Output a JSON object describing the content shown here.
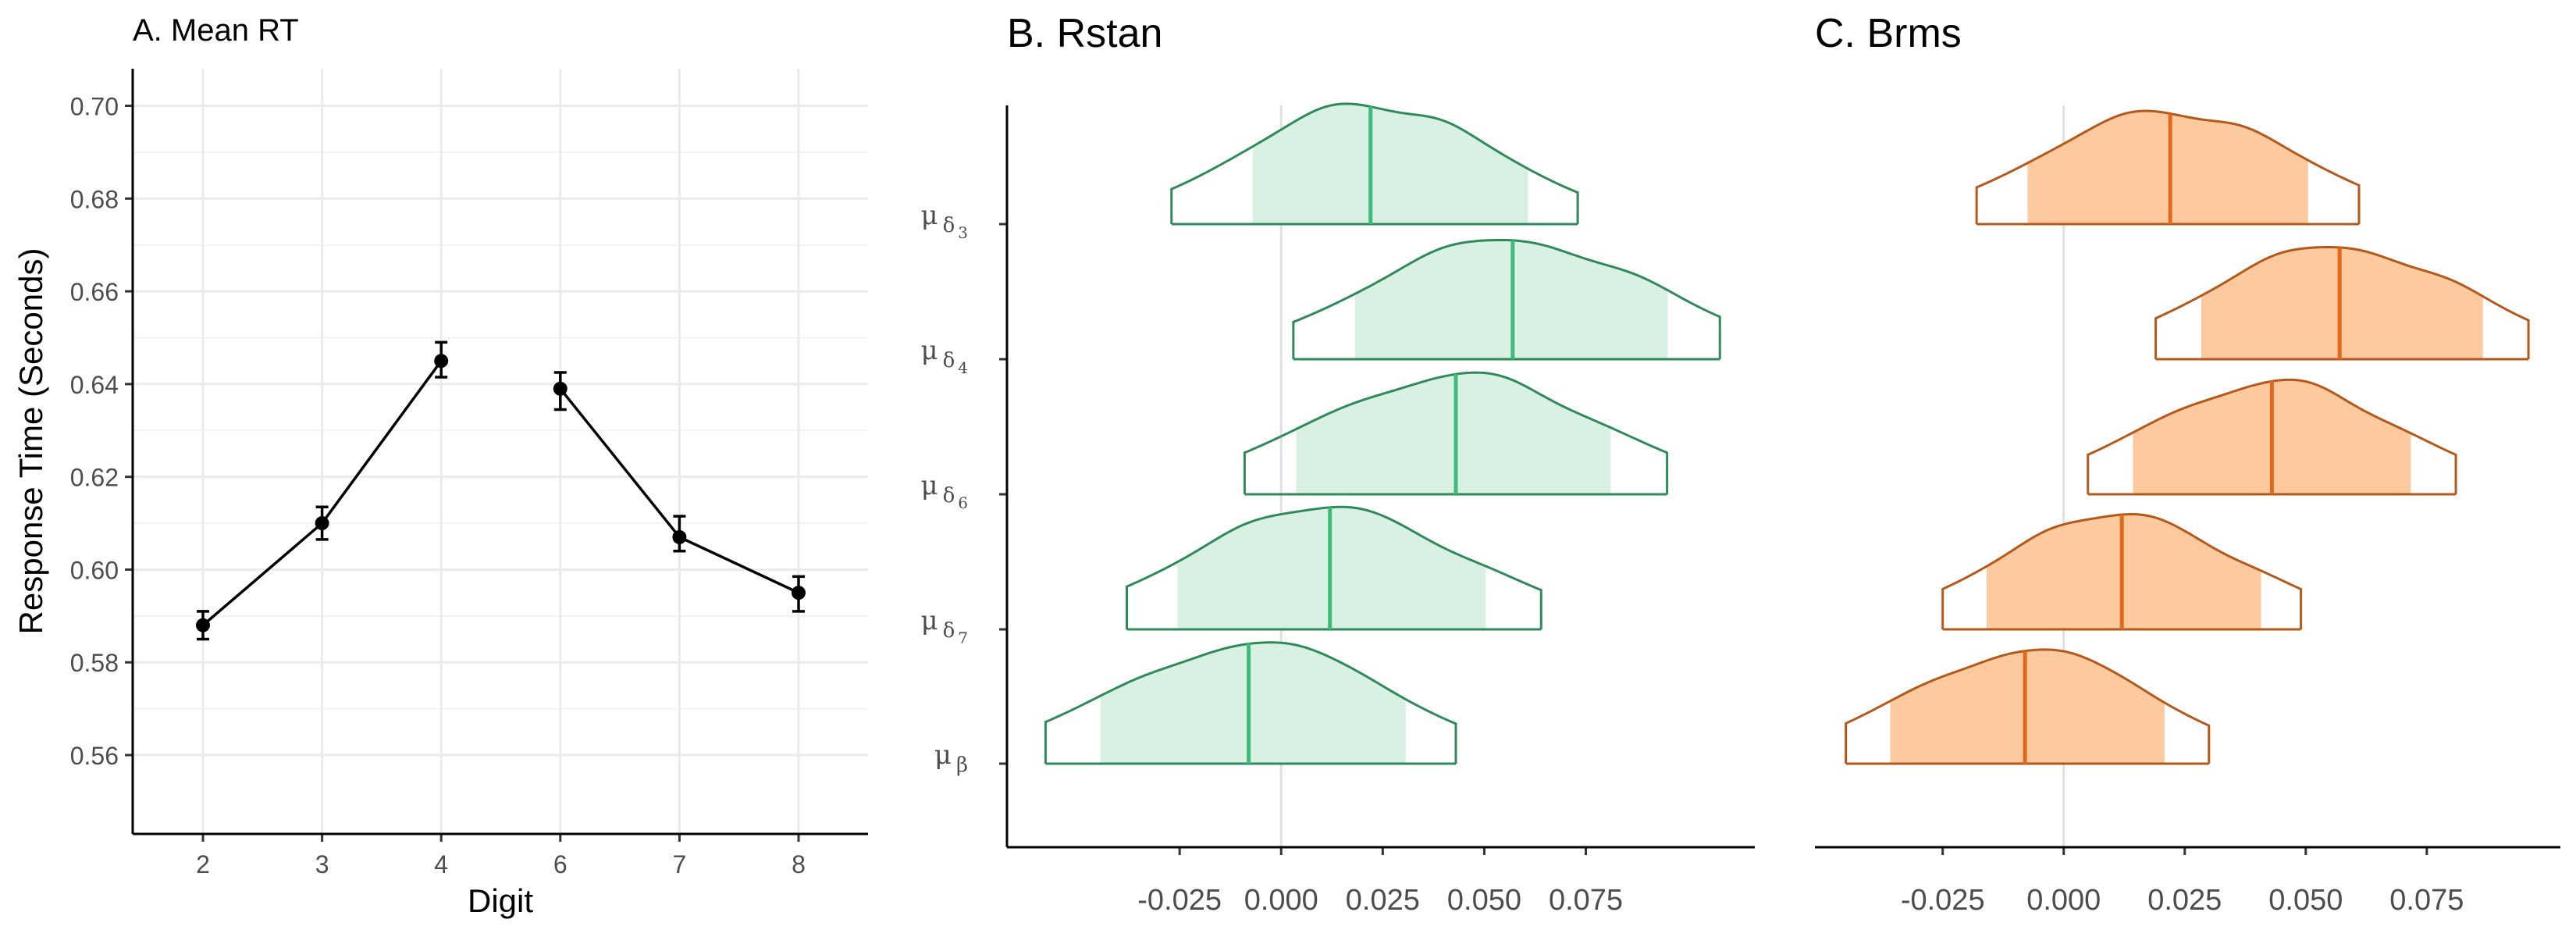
{
  "chart_data": [
    {
      "type": "line",
      "title": "A. Mean RT",
      "xlabel": "Digit",
      "ylabel": "Response Time (Seconds)",
      "categories": [
        "2",
        "3",
        "4",
        "6",
        "7",
        "8"
      ],
      "segments": [
        [
          "2",
          "3",
          "4"
        ],
        [
          "6",
          "7",
          "8"
        ]
      ],
      "values": [
        0.588,
        0.61,
        0.645,
        0.639,
        0.607,
        0.595
      ],
      "error_low": [
        0.585,
        0.6065,
        0.6415,
        0.6345,
        0.604,
        0.591
      ],
      "error_high": [
        0.591,
        0.6135,
        0.649,
        0.6425,
        0.6115,
        0.5985
      ],
      "yticks": [
        "0.56",
        "0.58",
        "0.60",
        "0.62",
        "0.64",
        "0.66",
        "0.68",
        "0.70"
      ],
      "ylim": [
        0.543,
        0.708
      ],
      "grid": true,
      "colors": {
        "line": "#000000",
        "grid": "#ebebeb"
      }
    },
    {
      "type": "area",
      "title": "B. Rstan",
      "rows": [
        {
          "param": "μ",
          "sub": "δ",
          "subsub": "3",
          "mean": 0.022,
          "ci": [
            -0.008,
            0.061
          ],
          "range": [
            -0.027,
            0.073
          ]
        },
        {
          "param": "μ",
          "sub": "δ",
          "subsub": "4",
          "mean": 0.057,
          "ci": [
            0.018,
            0.096
          ],
          "range": [
            0.003,
            0.108
          ]
        },
        {
          "param": "μ",
          "sub": "δ",
          "subsub": "6",
          "mean": 0.043,
          "ci": [
            0.003,
            0.082
          ],
          "range": [
            -0.009,
            0.095
          ]
        },
        {
          "param": "μ",
          "sub": "δ",
          "subsub": "7",
          "mean": 0.012,
          "ci": [
            -0.026,
            0.051
          ],
          "range": [
            -0.038,
            0.064
          ]
        },
        {
          "param": "μ",
          "sub": "β",
          "subsub": "",
          "mean": -0.008,
          "ci": [
            -0.045,
            0.031
          ],
          "range": [
            -0.058,
            0.043
          ]
        }
      ],
      "xticks": [
        "-0.025",
        "0.000",
        "0.025",
        "0.050",
        "0.075"
      ],
      "xlim": [
        -0.0675,
        0.1166
      ],
      "colors": {
        "fill": "#d9f1e3",
        "outline": "#2f8a59",
        "median": "#3dbb7a"
      }
    },
    {
      "type": "area",
      "title": "C. Brms",
      "rows": [
        {
          "mean": 0.022,
          "ci": [
            -0.008,
            0.051
          ],
          "range": [
            -0.018,
            0.061
          ]
        },
        {
          "mean": 0.057,
          "ci": [
            0.028,
            0.087
          ],
          "range": [
            0.019,
            0.096
          ]
        },
        {
          "mean": 0.043,
          "ci": [
            0.014,
            0.072
          ],
          "range": [
            0.005,
            0.081
          ]
        },
        {
          "mean": 0.012,
          "ci": [
            -0.016,
            0.041
          ],
          "range": [
            -0.025,
            0.049
          ]
        },
        {
          "mean": -0.008,
          "ci": [
            -0.036,
            0.021
          ],
          "range": [
            -0.045,
            0.03
          ]
        }
      ],
      "xticks": [
        "-0.025",
        "0.000",
        "0.025",
        "0.050",
        "0.075"
      ],
      "xlim": [
        -0.0514,
        0.1026
      ],
      "colors": {
        "fill": "#fdc99f",
        "outline": "#b5581a",
        "median": "#e0691b"
      }
    }
  ]
}
